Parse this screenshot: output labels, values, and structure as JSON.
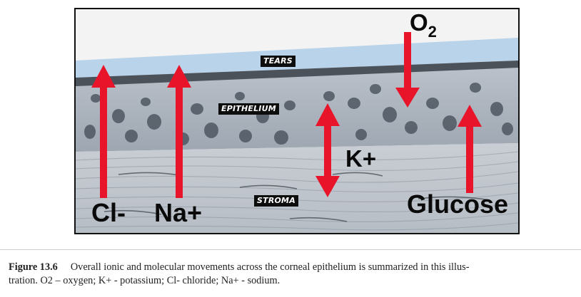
{
  "diagram": {
    "layers": {
      "tears": "TEARS",
      "epithelium": "EPITHELIUM",
      "stroma": "STROMA"
    },
    "labels": {
      "oxygen_base": "O",
      "oxygen_sub": "2",
      "potassium": "K+",
      "chloride": "Cl-",
      "sodium": "Na+",
      "glucose": "Glucose"
    },
    "colors": {
      "arrow": "#e8142a",
      "tears": "#b8d3ea",
      "label_background": "#0d0d0d"
    }
  },
  "caption": {
    "figure_number": "Figure 13.6",
    "line1": "Overall ionic and molecular movements across the corneal epithelium is summarized in this illus-",
    "line2": "tration. O2 – oxygen; K+ - potassium; Cl- chloride; Na+ - sodium."
  }
}
